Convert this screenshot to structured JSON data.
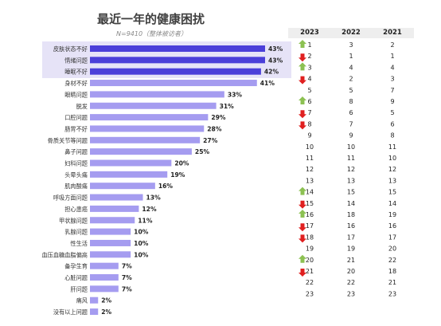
{
  "title": "最近一年的健康困扰",
  "subtitle": "N=9410（整体被访者）",
  "columns": [
    "2023",
    "2022",
    "2021"
  ],
  "colors": {
    "bar_highlight": "#4b3fd9",
    "bar_normal": "#a59cf0",
    "highlight_band": "#e6e3f7",
    "arrow_up": "#8cc152",
    "arrow_down": "#e02020"
  },
  "chart_data": {
    "type": "bar",
    "orientation": "horizontal",
    "unit": "%",
    "highlighted_categories": [
      "皮肤状态不好",
      "情绪问题",
      "睡眠不好"
    ],
    "categories": [
      "皮肤状态不好",
      "情绪问题",
      "睡眠不好",
      "身材不好",
      "眼睛问题",
      "脱发",
      "口腔问题",
      "肠胃不好",
      "骨质关节等问题",
      "鼻子问题",
      "妇科问题",
      "头晕头痛",
      "肌肉酸痛",
      "呼吸方面问题",
      "担心患癌",
      "甲状腺问题",
      "乳腺问题",
      "性生活",
      "血压血糖血脂偏高",
      "备孕生育",
      "心脏问题",
      "肝问题",
      "痛风",
      "没有以上问题"
    ],
    "values": [
      43,
      43,
      42,
      41,
      33,
      31,
      29,
      28,
      27,
      25,
      20,
      19,
      16,
      13,
      12,
      11,
      10,
      10,
      10,
      7,
      7,
      7,
      2,
      2
    ],
    "value_labels": [
      "43%",
      "43%",
      "42%",
      "41%",
      "33%",
      "31%",
      "29%",
      "28%",
      "27%",
      "25%",
      "20%",
      "19%",
      "16%",
      "13%",
      "12%",
      "11%",
      "10%",
      "10%",
      "10%",
      "7%",
      "7%",
      "7%",
      "2%",
      "2%"
    ],
    "xlim": [
      0,
      43
    ]
  },
  "rankings": [
    {
      "r2023": "1",
      "r2022": "3",
      "r2021": "2",
      "trend": "up"
    },
    {
      "r2023": "2",
      "r2022": "1",
      "r2021": "1",
      "trend": "down"
    },
    {
      "r2023": "3",
      "r2022": "4",
      "r2021": "4",
      "trend": "up"
    },
    {
      "r2023": "4",
      "r2022": "2",
      "r2021": "3",
      "trend": "down"
    },
    {
      "r2023": "5",
      "r2022": "5",
      "r2021": "7",
      "trend": "none"
    },
    {
      "r2023": "6",
      "r2022": "8",
      "r2021": "9",
      "trend": "up"
    },
    {
      "r2023": "7",
      "r2022": "6",
      "r2021": "5",
      "trend": "down"
    },
    {
      "r2023": "8",
      "r2022": "7",
      "r2021": "6",
      "trend": "down"
    },
    {
      "r2023": "9",
      "r2022": "9",
      "r2021": "8",
      "trend": "none"
    },
    {
      "r2023": "10",
      "r2022": "10",
      "r2021": "11",
      "trend": "none"
    },
    {
      "r2023": "11",
      "r2022": "11",
      "r2021": "10",
      "trend": "none"
    },
    {
      "r2023": "12",
      "r2022": "12",
      "r2021": "12",
      "trend": "none"
    },
    {
      "r2023": "13",
      "r2022": "13",
      "r2021": "13",
      "trend": "none"
    },
    {
      "r2023": "14",
      "r2022": "15",
      "r2021": "15",
      "trend": "up"
    },
    {
      "r2023": "15",
      "r2022": "14",
      "r2021": "14",
      "trend": "down"
    },
    {
      "r2023": "16",
      "r2022": "18",
      "r2021": "19",
      "trend": "up"
    },
    {
      "r2023": "17",
      "r2022": "16",
      "r2021": "16",
      "trend": "down"
    },
    {
      "r2023": "18",
      "r2022": "17",
      "r2021": "17",
      "trend": "down"
    },
    {
      "r2023": "19",
      "r2022": "19",
      "r2021": "20",
      "trend": "none"
    },
    {
      "r2023": "20",
      "r2022": "21",
      "r2021": "22",
      "trend": "up"
    },
    {
      "r2023": "21",
      "r2022": "20",
      "r2021": "18",
      "trend": "down"
    },
    {
      "r2023": "22",
      "r2022": "22",
      "r2021": "21",
      "trend": "none"
    },
    {
      "r2023": "23",
      "r2022": "23",
      "r2021": "23",
      "trend": "none"
    }
  ]
}
